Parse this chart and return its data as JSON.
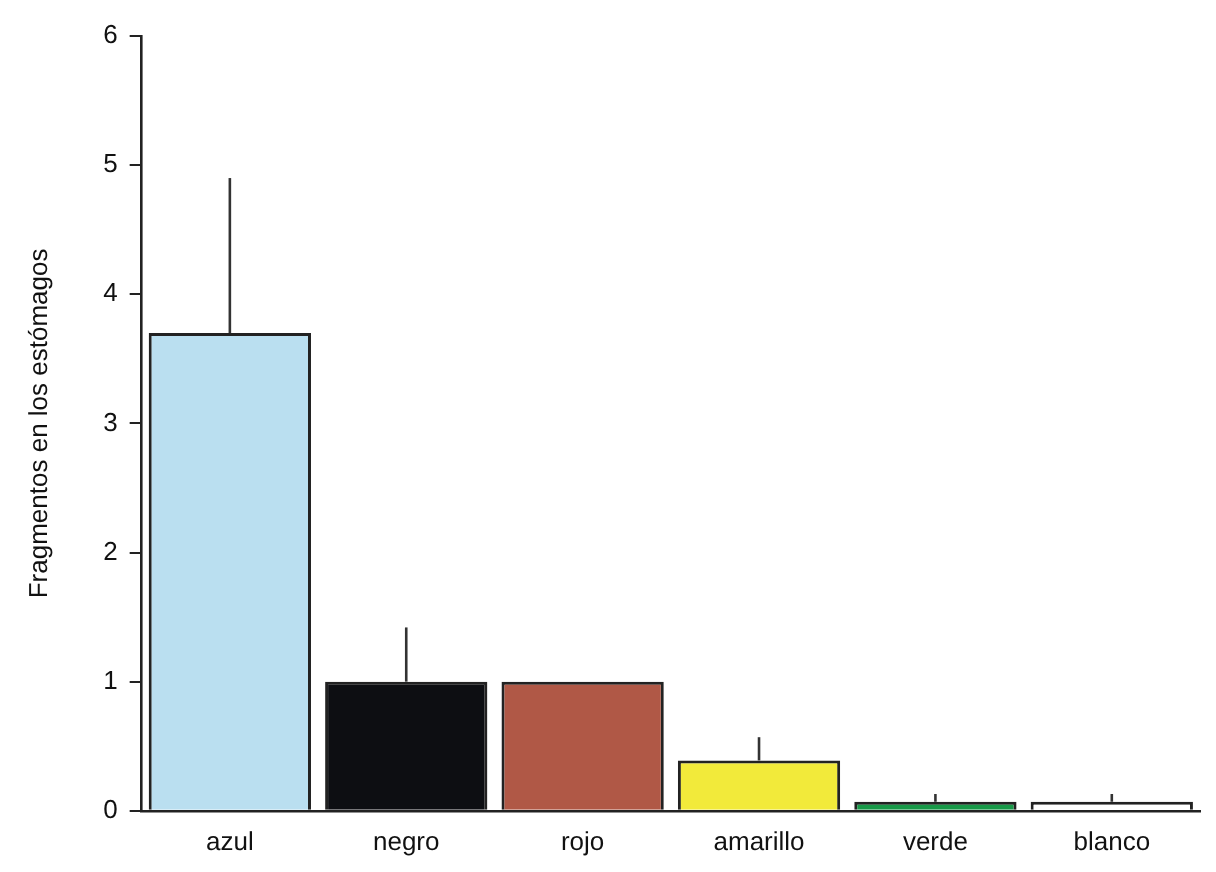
{
  "chart_data": {
    "type": "bar",
    "ylabel": "Fragmentos en los estómagos",
    "categories": [
      "azul",
      "negro",
      "rojo",
      "amarillo",
      "verde",
      "blanco"
    ],
    "values": [
      3.7,
      1.0,
      1.0,
      0.39,
      0.07,
      0.07
    ],
    "colors": [
      "#badff0",
      "#0d0e12",
      "#b05846",
      "#f2ea3a",
      "#189a48",
      "#ffffff"
    ],
    "errors": [
      [
        3.7,
        4.9
      ],
      [
        1.0,
        1.42
      ],
      null,
      [
        0.39,
        0.57
      ],
      [
        0.07,
        0.13
      ],
      [
        0.07,
        0.13
      ]
    ],
    "ylim": [
      0,
      6
    ],
    "yticks": [
      0,
      1,
      2,
      3,
      4,
      5,
      6
    ],
    "grid": false,
    "legend": false
  }
}
